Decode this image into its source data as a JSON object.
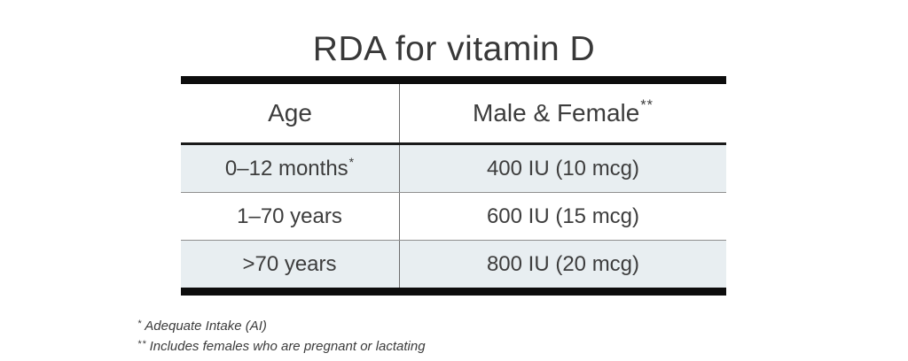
{
  "title": "RDA for vitamin D",
  "table": {
    "col1_header": "Age",
    "col2_header": "Male & Female",
    "col2_header_sup": "**",
    "rows": [
      {
        "age": "0–12 months",
        "age_sup": "*",
        "value": "400 IU (10 mcg)"
      },
      {
        "age": "1–70 years",
        "age_sup": "",
        "value": "600 IU (15 mcg)"
      },
      {
        "age": ">70 years",
        "age_sup": "",
        "value": "800 IU (20 mcg)"
      }
    ]
  },
  "footnotes": [
    {
      "marker": "*",
      "text": "Adequate Intake (AI)"
    },
    {
      "marker": "**",
      "text": "Includes females who are pregnant or lactating"
    }
  ]
}
